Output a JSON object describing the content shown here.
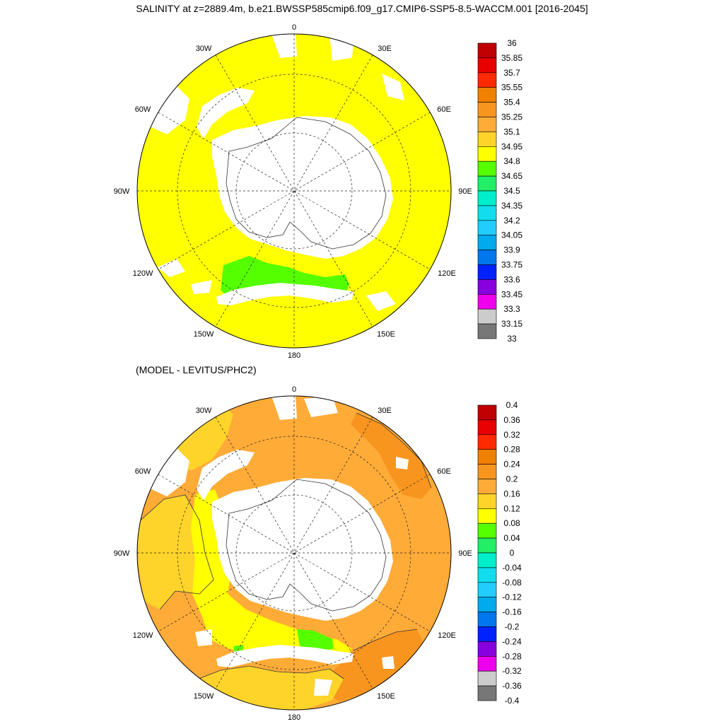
{
  "title": "SALINITY at z=2889.4m, b.e21.BWSSP585cmip6.f09_g17.CMIP6-SSP5-8.5-WACCM.001 [2016-2045]",
  "subtitle": "(MODEL - LEVITUS/PHC2)",
  "longitude_labels": [
    "0",
    "30E",
    "60E",
    "90E",
    "120E",
    "150E",
    "180",
    "150W",
    "120W",
    "90W",
    "60W",
    "30W"
  ],
  "panel1": {
    "colorbar_labels": [
      "36",
      "35.85",
      "35.7",
      "35.55",
      "35.4",
      "35.25",
      "35.1",
      "34.95",
      "34.8",
      "34.65",
      "34.5",
      "34.35",
      "34.2",
      "34.05",
      "33.9",
      "33.75",
      "33.6",
      "33.45",
      "33.3",
      "33.15",
      "33"
    ]
  },
  "panel2": {
    "colorbar_labels": [
      "0.4",
      "0.36",
      "0.32",
      "0.28",
      "0.24",
      "0.2",
      "0.16",
      "0.12",
      "0.08",
      "0.04",
      "0",
      "-0.04",
      "-0.08",
      "-0.12",
      "-0.16",
      "-0.2",
      "-0.24",
      "-0.28",
      "-0.32",
      "-0.36",
      "-0.4"
    ]
  },
  "colors": {
    "scale": [
      "#c00000",
      "#e80000",
      "#ff2a00",
      "#f08000",
      "#f8951f",
      "#ffab38",
      "#ffd42a",
      "#ffff00",
      "#55ff00",
      "#22ee66",
      "#00eecc",
      "#11ddee",
      "#22ccff",
      "#00aaee",
      "#0077ee",
      "#0022ff",
      "#8800dd",
      "#ee00ee",
      "#cccccc",
      "#777777"
    ],
    "land": "#ffffff",
    "salinity_main": "#ffff00",
    "salinity_low": "#55ff00",
    "anom_high": "#f8951f",
    "anom_mid": "#ffab38",
    "anom_low": "#ffd42a",
    "anom_yellow": "#ffff00",
    "anom_green": "#55ff00"
  }
}
